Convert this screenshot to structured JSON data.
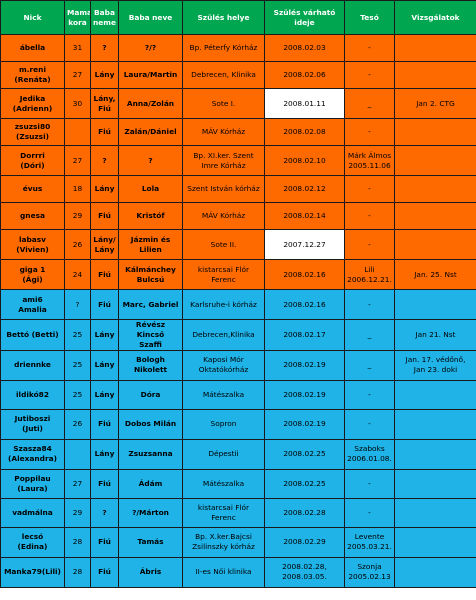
{
  "colors": {
    "header": "#00a650",
    "orange": "#ff6a00",
    "blue": "#1fb3e8",
    "highlight": "#ffffff"
  },
  "headers": [
    "Nick",
    "Mama kora",
    "Baba neme",
    "Baba neve",
    "Szülés helye",
    "Szülés várható ideje",
    "Tesó",
    "Vizsgálatok"
  ],
  "rows": [
    {
      "color": "orange",
      "highlight": false,
      "cells": [
        "ábella",
        "31",
        "?",
        "?/?",
        "Bp. Péterfy Kórház",
        "2008.02.03",
        "-",
        ""
      ]
    },
    {
      "color": "orange",
      "highlight": false,
      "cells": [
        "m.reni\n(Renáta)",
        "27",
        "Lány",
        "Laura/Martin",
        "Debrecen, Klinika",
        "2008.02.06",
        "-",
        ""
      ]
    },
    {
      "color": "orange",
      "highlight": true,
      "cells": [
        "Jedika\n(Adrienn)",
        "30",
        "Lány,\nFiú",
        "Anna/Zolán",
        "Sote I.",
        "2008.01.11",
        "_",
        "Jan 2. CTG"
      ]
    },
    {
      "color": "orange",
      "highlight": false,
      "cells": [
        "zsuzsi80\n(Zsuzsi)",
        "",
        "Fiú",
        "Zalán/Dániel",
        "MÁV Kórház",
        "2008.02.08",
        "-",
        ""
      ]
    },
    {
      "color": "orange",
      "highlight": false,
      "cells": [
        "Dorrri\n(Dóri)",
        "27",
        "?",
        "?",
        "Bp. XI.ker. Szent\nImre Kórház",
        "2008.02.10",
        "Márk Álmos\n2005.11.06",
        ""
      ]
    },
    {
      "color": "orange",
      "highlight": false,
      "cells": [
        "évus",
        "18",
        "Lány",
        "Lola",
        "Szent István kórház",
        "2008.02.12",
        "-",
        ""
      ]
    },
    {
      "color": "orange",
      "highlight": false,
      "cells": [
        "gnesa",
        "29",
        "Fiú",
        "Kristóf",
        "MÁV Kórház",
        "2008.02.14",
        "-",
        ""
      ]
    },
    {
      "color": "orange",
      "highlight": true,
      "cells": [
        "labasv\n(Vivien)",
        "26",
        "Lány/\nLány",
        "Jázmin és\nLilien",
        "Sote II.",
        "2007.12.27",
        "-",
        ""
      ]
    },
    {
      "color": "orange",
      "highlight": false,
      "cells": [
        "giga 1\n(Ági)",
        "24",
        "Fiú",
        "Kálmánchey\nBulcsú",
        "kistarcsai Flór\nFerenc",
        "2008.02.16",
        "Lili\n2006.12.21.",
        "Jan. 25. Nst"
      ]
    },
    {
      "color": "blue",
      "highlight": false,
      "cells": [
        "ami6\nAmalia",
        "?",
        "Fiú",
        "Marc, Gabriel",
        "Karlsruhe-i kórház",
        "2008.02.16",
        "-",
        ""
      ]
    },
    {
      "color": "blue",
      "highlight": false,
      "cells": [
        "Bettó (Betti)",
        "25",
        "Lány",
        "Révész Kincső\nSzaffi",
        "Debrecen,Klinika",
        "2008.02.17",
        "_",
        "Jan 21. Nst"
      ]
    },
    {
      "color": "blue",
      "highlight": false,
      "cells": [
        "driennke",
        "25",
        "Lány",
        "Bologh\nNikolett",
        "Kaposi Mór\nOktatókórház",
        "2008.02.19",
        "_",
        "Jan. 17. védőnő,\nJan 23. doki"
      ]
    },
    {
      "color": "blue",
      "highlight": false,
      "cells": [
        "ildikó82",
        "25",
        "Lány",
        "Dóra",
        "Mátészalka",
        "2008.02.19",
        "-",
        ""
      ]
    },
    {
      "color": "blue",
      "highlight": false,
      "cells": [
        "Jutiboszi\n(Juti)",
        "26",
        "Fiú",
        "Dobos Milán",
        "Sopron",
        "2008.02.19",
        "-",
        ""
      ]
    },
    {
      "color": "blue",
      "highlight": false,
      "cells": [
        "Szasza84\n(Alexandra)",
        "",
        "Lány",
        "Zsuzsanna",
        "Dépestii",
        "2008.02.25",
        "Szaboks\n2006.01.08.",
        ""
      ]
    },
    {
      "color": "blue",
      "highlight": false,
      "cells": [
        "Poppilau\n(Laura)",
        "27",
        "Fiú",
        "Ádám",
        "Mátészalka",
        "2008.02.25",
        "-",
        ""
      ]
    },
    {
      "color": "blue",
      "highlight": false,
      "cells": [
        "vadmálna",
        "29",
        "?",
        "?/Márton",
        "kistarcsai Flór\nFerenc",
        "2008.02.28",
        "-",
        ""
      ]
    },
    {
      "color": "blue",
      "highlight": false,
      "cells": [
        "lecsó\n(Edina)",
        "28",
        "Fiú",
        "Tamás",
        "Bp. X.ker.Bajcsi\nZsilinszky kórház",
        "2008.02.29",
        "Levente\n2005.03.21.",
        ""
      ]
    },
    {
      "color": "blue",
      "highlight": false,
      "cells": [
        "Manka79(Lili)",
        "28",
        "Fiú",
        "Ábris",
        "II-es Női klinika",
        "2008.02.28,\n2008.03.05.",
        "Szonja\n2005.02.13",
        ""
      ]
    }
  ]
}
